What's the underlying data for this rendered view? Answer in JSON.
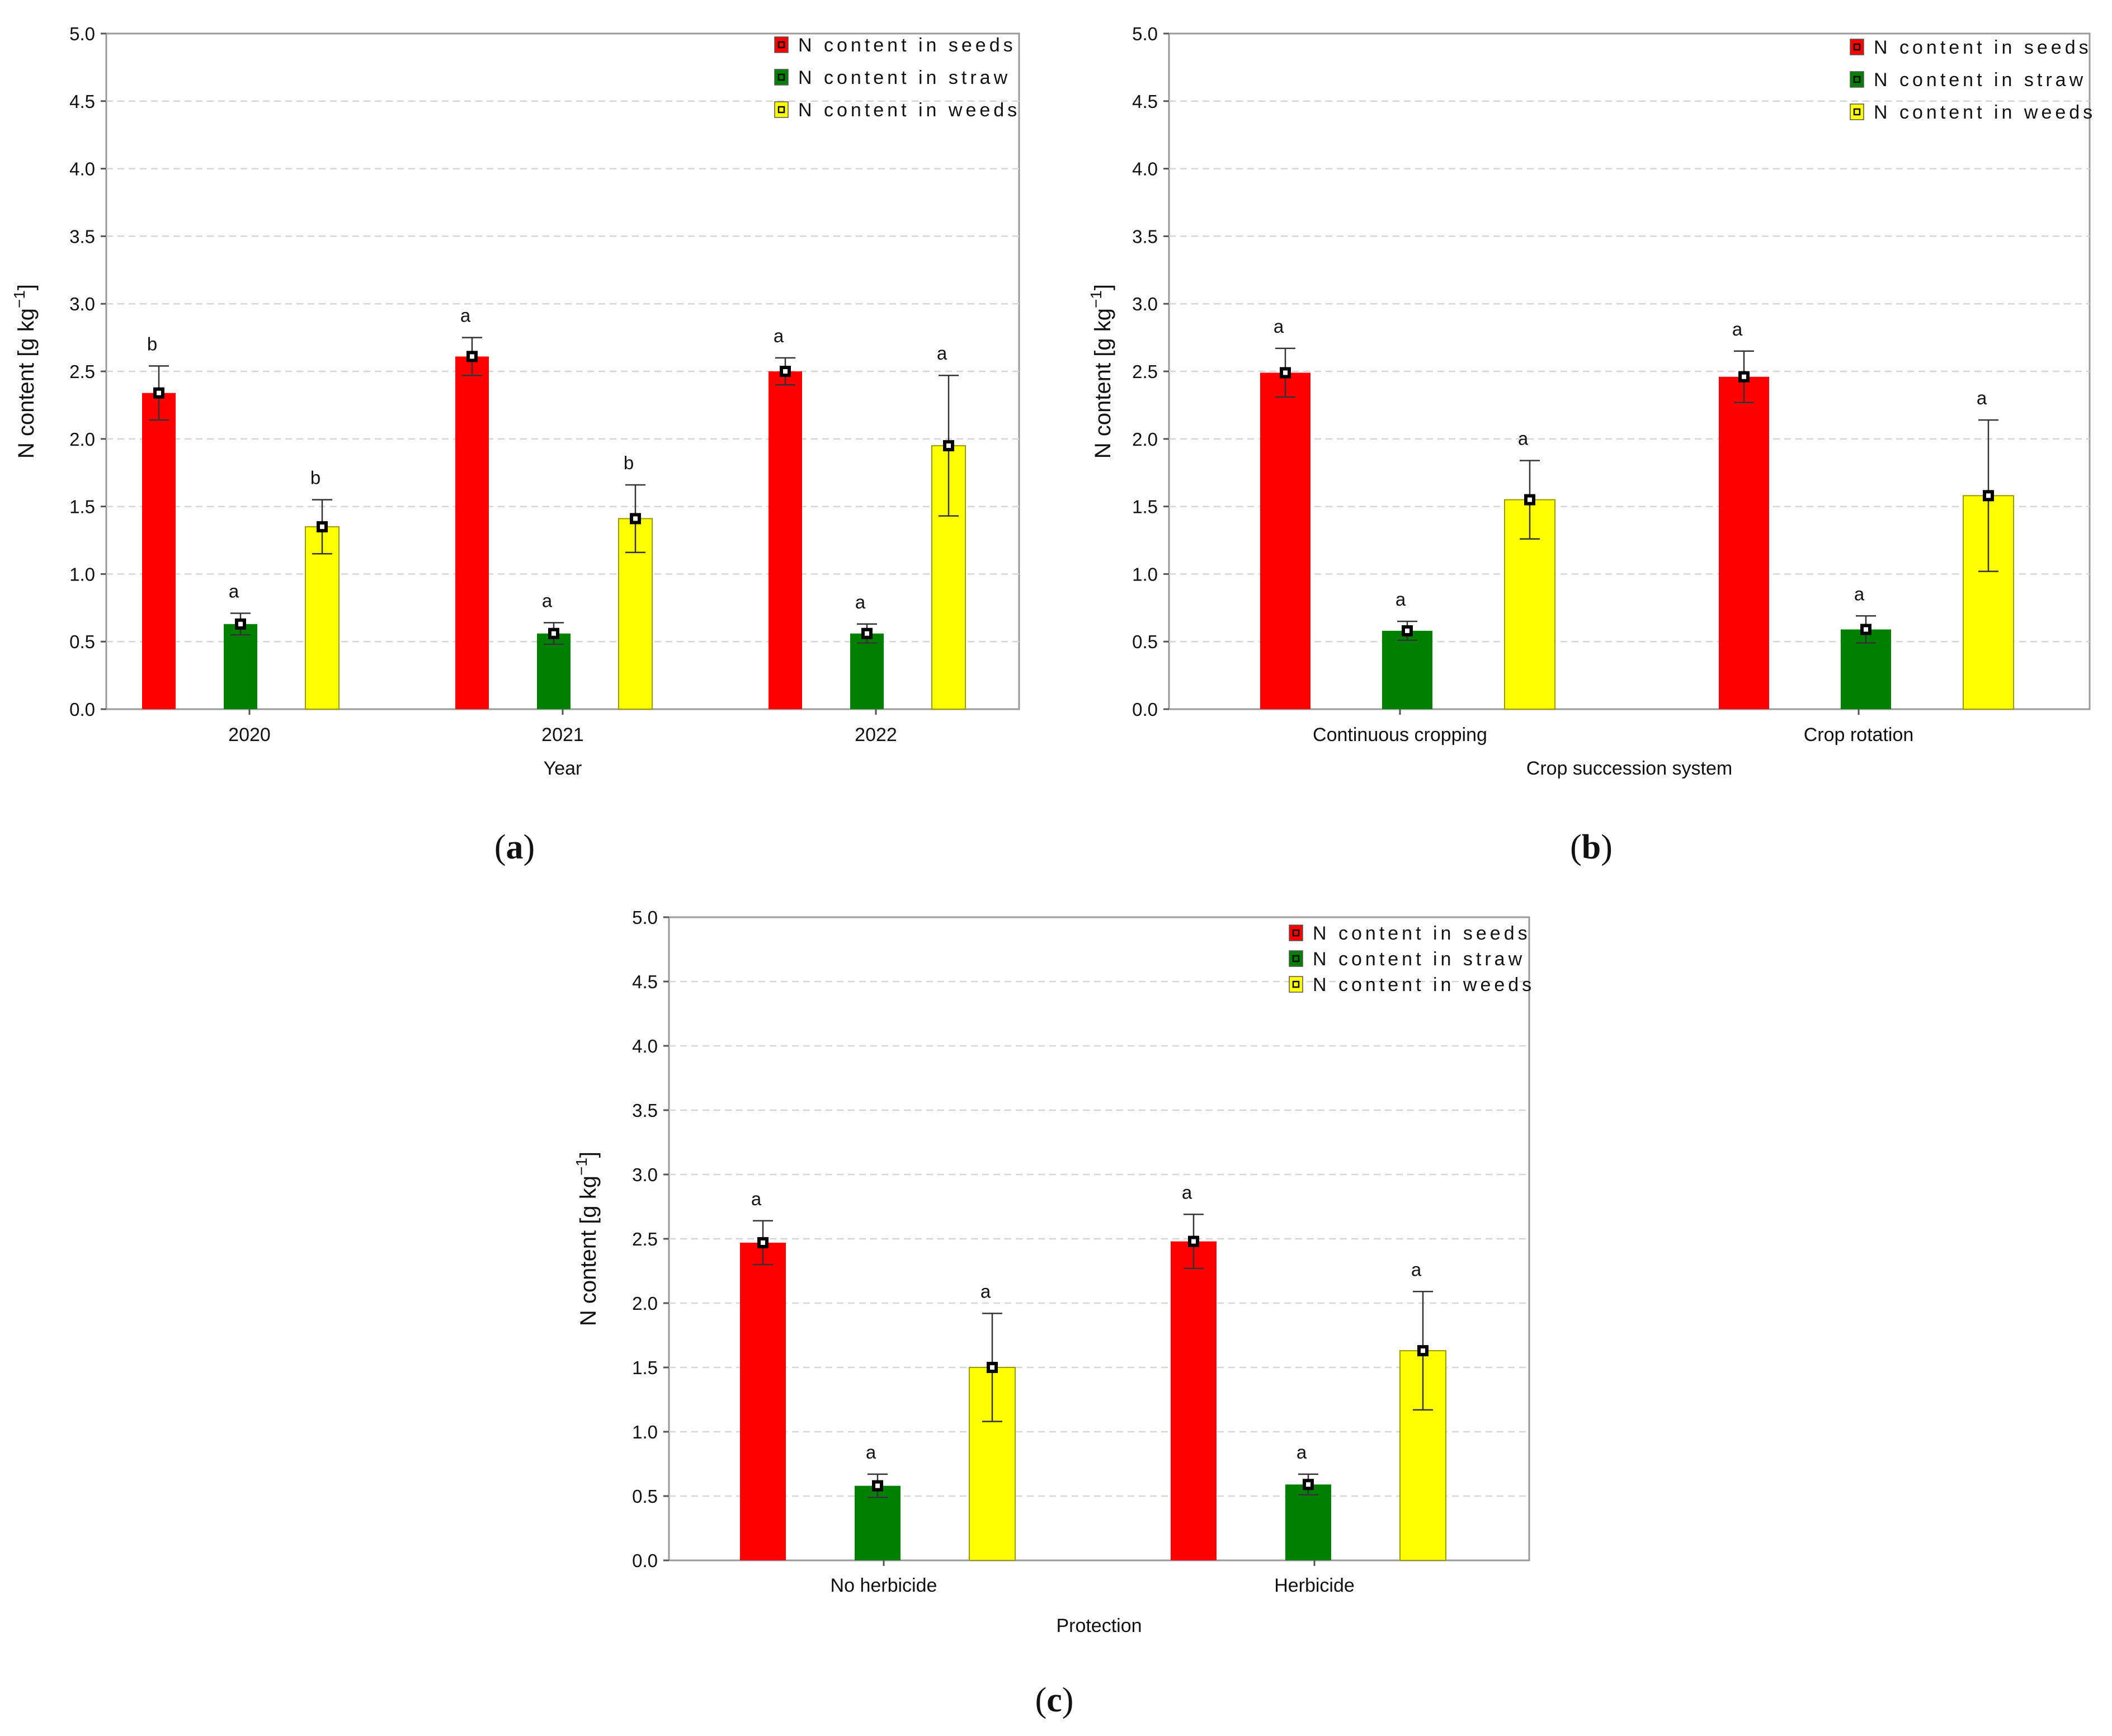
{
  "chart_data": [
    {
      "id": "a",
      "type": "bar",
      "panel_label": "a",
      "xlabel": "Year",
      "ylabel": "N content [g kg",
      "ylabel_sup": "−1",
      "ylabel_close": "]",
      "ylim": [
        0,
        5
      ],
      "yticks": [
        "0.0",
        "0.5",
        "1.0",
        "1.5",
        "2.0",
        "2.5",
        "3.0",
        "3.5",
        "4.0",
        "4.5",
        "5.0"
      ],
      "categories": [
        "2020",
        "2021",
        "2022"
      ],
      "legend_position": "top-right",
      "series": [
        {
          "name": "N content in  seeds",
          "color": "#ff0000",
          "values": [
            2.34,
            2.61,
            2.5
          ],
          "err": [
            0.2,
            0.14,
            0.1
          ],
          "letters": [
            "b",
            "a",
            "a"
          ]
        },
        {
          "name": "N content in  straw",
          "color": "#008000",
          "values": [
            0.63,
            0.56,
            0.56
          ],
          "err": [
            0.08,
            0.08,
            0.07
          ],
          "letters": [
            "a",
            "a",
            "a"
          ]
        },
        {
          "name": "N content in weeds",
          "color": "#ffff00",
          "values": [
            1.35,
            1.41,
            1.95
          ],
          "err": [
            0.2,
            0.25,
            0.52
          ],
          "letters": [
            "b",
            "b",
            "a"
          ]
        }
      ]
    },
    {
      "id": "b",
      "type": "bar",
      "panel_label": "b",
      "xlabel": "Crop succession system",
      "ylabel": "N content [g kg",
      "ylabel_sup": "−1",
      "ylabel_close": "]",
      "ylim": [
        0,
        5
      ],
      "yticks": [
        "0.0",
        "0.5",
        "1.0",
        "1.5",
        "2.0",
        "2.5",
        "3.0",
        "3.5",
        "4.0",
        "4.5",
        "5.0"
      ],
      "categories": [
        "Continuous cropping",
        "Crop rotation"
      ],
      "legend_position": "top-right",
      "series": [
        {
          "name": "N content in  seeds",
          "color": "#ff0000",
          "values": [
            2.49,
            2.46
          ],
          "err": [
            0.18,
            0.19
          ],
          "letters": [
            "a",
            "a"
          ]
        },
        {
          "name": "N content in  straw",
          "color": "#008000",
          "values": [
            0.58,
            0.59
          ],
          "err": [
            0.07,
            0.1
          ],
          "letters": [
            "a",
            "a"
          ]
        },
        {
          "name": "N content in weeds",
          "color": "#ffff00",
          "values": [
            1.55,
            1.58
          ],
          "err": [
            0.29,
            0.56
          ],
          "letters": [
            "a",
            "a"
          ]
        }
      ]
    },
    {
      "id": "c",
      "type": "bar",
      "panel_label": "c",
      "xlabel": "Protection",
      "ylabel": "N content [g kg",
      "ylabel_sup": "−1",
      "ylabel_close": "]",
      "ylim": [
        0,
        5
      ],
      "yticks": [
        "0.0",
        "0.5",
        "1.0",
        "1.5",
        "2.0",
        "2.5",
        "3.0",
        "3.5",
        "4.0",
        "4.5",
        "5.0"
      ],
      "categories": [
        "No herbicide",
        "Herbicide"
      ],
      "legend_position": "top-right",
      "series": [
        {
          "name": "N content in  seeds",
          "color": "#ff0000",
          "values": [
            2.47,
            2.48
          ],
          "err": [
            0.17,
            0.21
          ],
          "letters": [
            "a",
            "a"
          ]
        },
        {
          "name": "N content in  straw",
          "color": "#008000",
          "values": [
            0.58,
            0.59
          ],
          "err": [
            0.09,
            0.08
          ],
          "letters": [
            "a",
            "a"
          ]
        },
        {
          "name": "N content in weeds",
          "color": "#ffff00",
          "values": [
            1.5,
            1.63
          ],
          "err": [
            0.42,
            0.46
          ],
          "letters": [
            "a",
            "a"
          ]
        }
      ]
    }
  ]
}
